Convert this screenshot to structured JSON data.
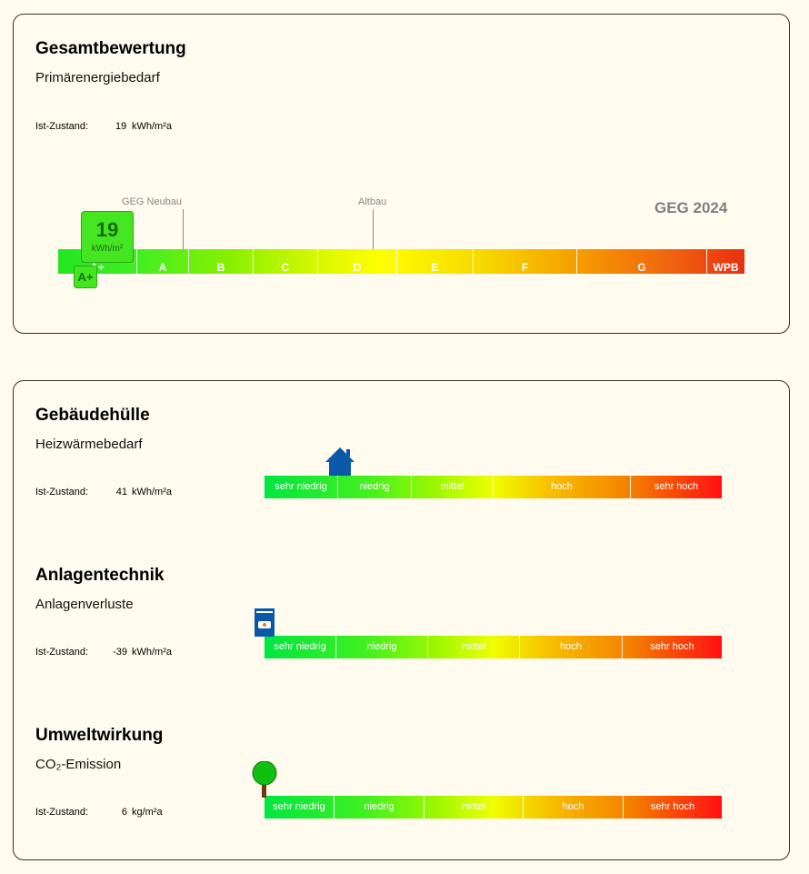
{
  "overall": {
    "title": "Gesamtbewertung",
    "subtitle": "Primärenergiebedarf",
    "status_label": "Ist-Zustand:",
    "status_value": 19,
    "status_unit": "kWh/m²a",
    "indicator_unit": "kWh/m²",
    "indicator_class": "A+",
    "markers": [
      "GEG Neubau",
      "Altbau"
    ],
    "standard": "GEG 2024",
    "classes": [
      "A+",
      "A",
      "B",
      "C",
      "D",
      "E",
      "F",
      "G",
      "WPB"
    ]
  },
  "sections": [
    {
      "title": "Gebäudehülle",
      "subtitle": "Heizwärmebedarf",
      "status_label": "Ist-Zustand:",
      "status_value": 41,
      "status_unit": "kWh/m²a",
      "levels": [
        "sehr niedrig",
        "niedrig",
        "mittel",
        "hoch",
        "sehr hoch"
      ]
    },
    {
      "title": "Anlagentechnik",
      "subtitle": "Anlagenverluste",
      "status_label": "Ist-Zustand:",
      "status_value": -39,
      "status_unit": "kWh/m²a",
      "levels": [
        "sehr niedrig",
        "niedrig",
        "mittel",
        "hoch",
        "sehr hoch"
      ]
    },
    {
      "title": "Umweltwirkung",
      "subtitle": "CO₂-Emission",
      "status_label": "Ist-Zustand:",
      "status_value": 6,
      "status_unit": "kg/m²a",
      "levels": [
        "sehr niedrig",
        "niedrig",
        "mittel",
        "hoch",
        "sehr hoch"
      ]
    }
  ]
}
